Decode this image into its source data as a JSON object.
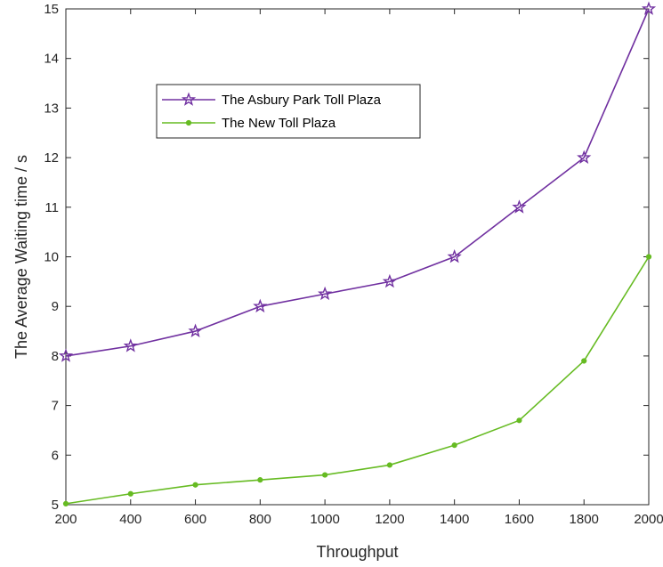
{
  "chart_data": {
    "type": "line",
    "xlabel": "Throughput",
    "ylabel": "The Average Waiting time / s",
    "x": [
      200,
      400,
      600,
      800,
      1000,
      1200,
      1400,
      1600,
      1800,
      2000
    ],
    "xlim": [
      200,
      2000
    ],
    "ylim": [
      5,
      15
    ],
    "xticks": [
      "200",
      "400",
      "600",
      "800",
      "1000",
      "1200",
      "1400",
      "1600",
      "1800",
      "2000"
    ],
    "yticks": [
      "5",
      "6",
      "7",
      "8",
      "9",
      "10",
      "11",
      "12",
      "13",
      "14",
      "15"
    ],
    "grid": false,
    "legend_position": "top-left",
    "series": [
      {
        "name": "The Asbury Park Toll Plaza",
        "values": [
          8.0,
          8.2,
          8.5,
          9.0,
          9.25,
          9.5,
          10.0,
          11.0,
          12.0,
          15.0
        ],
        "color": "#7030a0",
        "marker": "star"
      },
      {
        "name": "The New Toll Plaza",
        "values": [
          5.02,
          5.22,
          5.4,
          5.5,
          5.6,
          5.8,
          6.2,
          6.7,
          7.9,
          10.0
        ],
        "color": "#66bb22",
        "marker": "dot"
      }
    ]
  }
}
